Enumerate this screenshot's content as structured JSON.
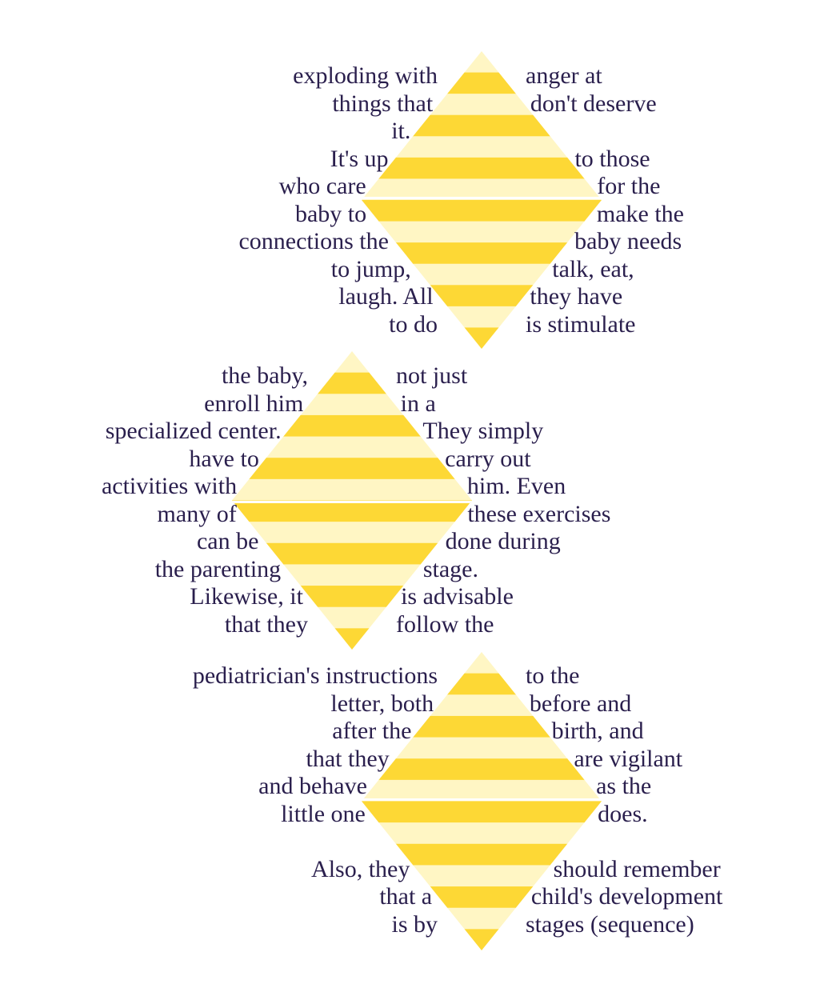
{
  "colors": {
    "text": "#2a1f4d",
    "stripe_dark": "#fdd835",
    "stripe_light": "#fff6c4",
    "background": "#ffffff"
  },
  "blocks": [
    {
      "name": "diamond-top",
      "lines": [
        {
          "left": "exploding with",
          "right": "anger at"
        },
        {
          "left": "things that",
          "right": "don't deserve"
        },
        {
          "left": "it.",
          "right": ""
        },
        {
          "left": "It's up",
          "right": "to those"
        },
        {
          "left": "who care",
          "right": "for the"
        },
        {
          "left": "baby to",
          "right": "make the"
        },
        {
          "left": "connections the",
          "right": "baby needs"
        },
        {
          "left": "to jump,",
          "right": "talk, eat,"
        },
        {
          "left": "laugh. All",
          "right": "they have"
        },
        {
          "left": "to do",
          "right": "is stimulate"
        }
      ]
    },
    {
      "name": "diamond-middle",
      "lines": [
        {
          "left": "the baby,",
          "right": "not just"
        },
        {
          "left": "enroll him",
          "right": "in a"
        },
        {
          "left": "specialized center.",
          "right": "They simply"
        },
        {
          "left": "have to",
          "right": "carry out"
        },
        {
          "left": "activities with",
          "right": "him. Even"
        },
        {
          "left": "many of",
          "right": "these exercises"
        },
        {
          "left": "can be",
          "right": "done during"
        },
        {
          "left": "the parenting",
          "right": "stage."
        },
        {
          "left": "Likewise, it",
          "right": "is advisable"
        },
        {
          "left": "that they",
          "right": "follow the"
        }
      ]
    },
    {
      "name": "diamond-bottom",
      "lines": [
        {
          "left": "pediatrician's instructions",
          "right": "to the"
        },
        {
          "left": "letter, both",
          "right": "before and"
        },
        {
          "left": "after the",
          "right": "birth, and"
        },
        {
          "left": "that they",
          "right": "are vigilant"
        },
        {
          "left": "and behave",
          "right": "as the"
        },
        {
          "left": "little one",
          "right": "does."
        },
        {
          "left": "",
          "right": ""
        },
        {
          "left": "Also, they",
          "right": "should remember"
        },
        {
          "left": "that a",
          "right": "child's development"
        },
        {
          "left": "is by",
          "right": "stages (sequence)"
        }
      ]
    }
  ]
}
